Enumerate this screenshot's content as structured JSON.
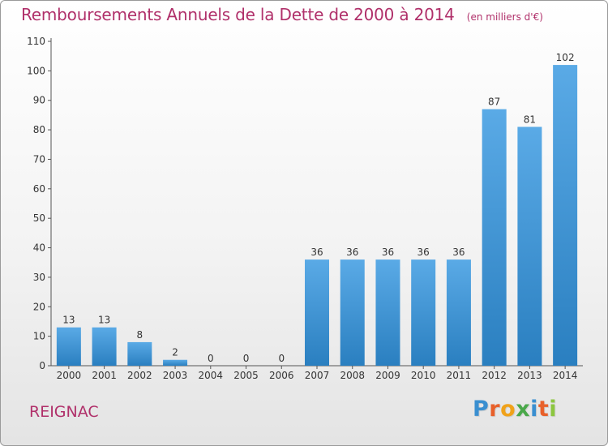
{
  "header": {
    "title": "Remboursements Annuels de la Dette de 2000 à 2014",
    "subtitle": "(en milliers d'€)"
  },
  "footer": {
    "commune": "REIGNAC",
    "logo_letters": [
      {
        "char": "P",
        "color": "#3a8fd0"
      },
      {
        "char": "r",
        "color": "#e8602a"
      },
      {
        "char": "o",
        "color": "#f0a21a"
      },
      {
        "char": "x",
        "color": "#4aa84a"
      },
      {
        "char": "i",
        "color": "#3a8fd0"
      },
      {
        "char": "t",
        "color": "#e8602a"
      },
      {
        "char": "i",
        "color": "#8cc63f"
      }
    ]
  },
  "colors": {
    "bar_light": "#5aaae6",
    "bar_dark": "#2a7fc0",
    "accent": "#b0306a"
  },
  "chart_data": {
    "type": "bar",
    "title": "Remboursements Annuels de la Dette de 2000 à 2014",
    "subtitle": "(en milliers d'€)",
    "xlabel": "",
    "ylabel": "",
    "categories": [
      "2000",
      "2001",
      "2002",
      "2003",
      "2004",
      "2005",
      "2006",
      "2007",
      "2008",
      "2009",
      "2010",
      "2011",
      "2012",
      "2013",
      "2014"
    ],
    "values": [
      13,
      13,
      8,
      2,
      0,
      0,
      0,
      36,
      36,
      36,
      36,
      36,
      87,
      81,
      102
    ],
    "ylim": [
      0,
      110
    ],
    "yticks": [
      0,
      10,
      20,
      30,
      40,
      50,
      60,
      70,
      80,
      90,
      100,
      110
    ],
    "grid": false,
    "legend": "none"
  }
}
